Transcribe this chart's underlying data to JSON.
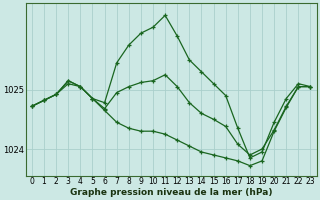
{
  "title": "Graphe pression niveau de la mer (hPa)",
  "bg_color": "#cce8e4",
  "grid_color": "#aacfcc",
  "line_color": "#1a6620",
  "x_min": -0.5,
  "x_max": 23.5,
  "y_min": 1023.55,
  "y_max": 1026.45,
  "ytick_labels": [
    "1024",
    "1025"
  ],
  "ytick_values": [
    1024.0,
    1025.0
  ],
  "series1": [
    1024.72,
    1024.82,
    1024.92,
    1025.15,
    1025.05,
    1024.85,
    1024.78,
    1025.45,
    1025.75,
    1025.95,
    1026.05,
    1026.25,
    1025.9,
    1025.5,
    1025.3,
    1025.1,
    1024.9,
    1024.35,
    1023.85,
    1023.95,
    1024.45,
    1024.85,
    1025.1,
    1025.05
  ],
  "series2": [
    1024.72,
    1024.82,
    1024.92,
    1025.15,
    1025.05,
    1024.85,
    1024.65,
    1024.45,
    1024.35,
    1024.3,
    1024.3,
    1024.25,
    1024.15,
    1024.05,
    1023.95,
    1023.9,
    1023.85,
    1023.8,
    1023.72,
    1023.8,
    1024.3,
    1024.7,
    1025.05,
    1025.05
  ],
  "series3": [
    1024.72,
    1024.82,
    1024.92,
    1025.1,
    1025.05,
    1024.85,
    1024.68,
    1024.95,
    1025.05,
    1025.12,
    1025.15,
    1025.25,
    1025.05,
    1024.78,
    1024.6,
    1024.5,
    1024.38,
    1024.08,
    1023.9,
    1024.0,
    1024.32,
    1024.72,
    1025.05,
    1025.05
  ],
  "title_fontsize": 6.5,
  "tick_fontsize": 5.5
}
